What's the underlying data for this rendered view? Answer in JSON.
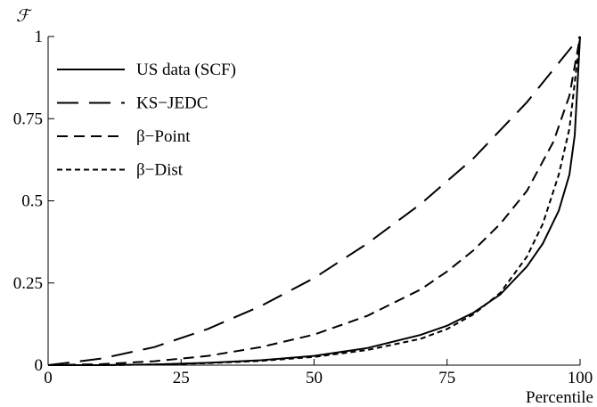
{
  "chart_data": {
    "type": "line",
    "xlabel": "Percentile",
    "ylabel": "ℱ",
    "xlim": [
      0,
      100
    ],
    "ylim": [
      0,
      1
    ],
    "xticks": [
      0,
      25,
      50,
      75,
      100
    ],
    "xtick_labels": [
      "0",
      "25",
      "50",
      "75",
      "100"
    ],
    "yticks": [
      0,
      0.25,
      0.5,
      0.75,
      1
    ],
    "ytick_labels": [
      "0",
      "0.25",
      "0.5",
      "0.75",
      "1"
    ],
    "grid": false,
    "legend_position": "top-left",
    "series": [
      {
        "name": "US data (SCF)",
        "style": "solid",
        "x": [
          0,
          10,
          20,
          30,
          40,
          50,
          60,
          70,
          75,
          80,
          85,
          90,
          93,
          96,
          98,
          99,
          100
        ],
        "y": [
          0,
          0.0,
          0.002,
          0.007,
          0.015,
          0.028,
          0.052,
          0.092,
          0.12,
          0.16,
          0.215,
          0.3,
          0.37,
          0.47,
          0.58,
          0.7,
          1.0
        ]
      },
      {
        "name": "KS−JEDC",
        "style": "long-dash",
        "x": [
          0,
          10,
          20,
          30,
          40,
          50,
          60,
          70,
          80,
          90,
          100
        ],
        "y": [
          0,
          0.02,
          0.055,
          0.11,
          0.18,
          0.265,
          0.37,
          0.49,
          0.63,
          0.8,
          1.0
        ]
      },
      {
        "name": "β−Point",
        "style": "dash",
        "x": [
          0,
          10,
          20,
          30,
          40,
          50,
          60,
          70,
          75,
          80,
          85,
          90,
          95,
          98,
          100
        ],
        "y": [
          0,
          0.003,
          0.012,
          0.028,
          0.055,
          0.093,
          0.15,
          0.23,
          0.285,
          0.35,
          0.43,
          0.53,
          0.68,
          0.82,
          1.0
        ]
      },
      {
        "name": "β−Dist",
        "style": "short-dash",
        "x": [
          0,
          10,
          20,
          30,
          40,
          50,
          60,
          70,
          75,
          80,
          85,
          90,
          93,
          96,
          98,
          100
        ],
        "y": [
          0,
          0.0,
          0.002,
          0.006,
          0.013,
          0.025,
          0.046,
          0.08,
          0.11,
          0.155,
          0.22,
          0.33,
          0.43,
          0.58,
          0.72,
          1.0
        ]
      }
    ]
  }
}
